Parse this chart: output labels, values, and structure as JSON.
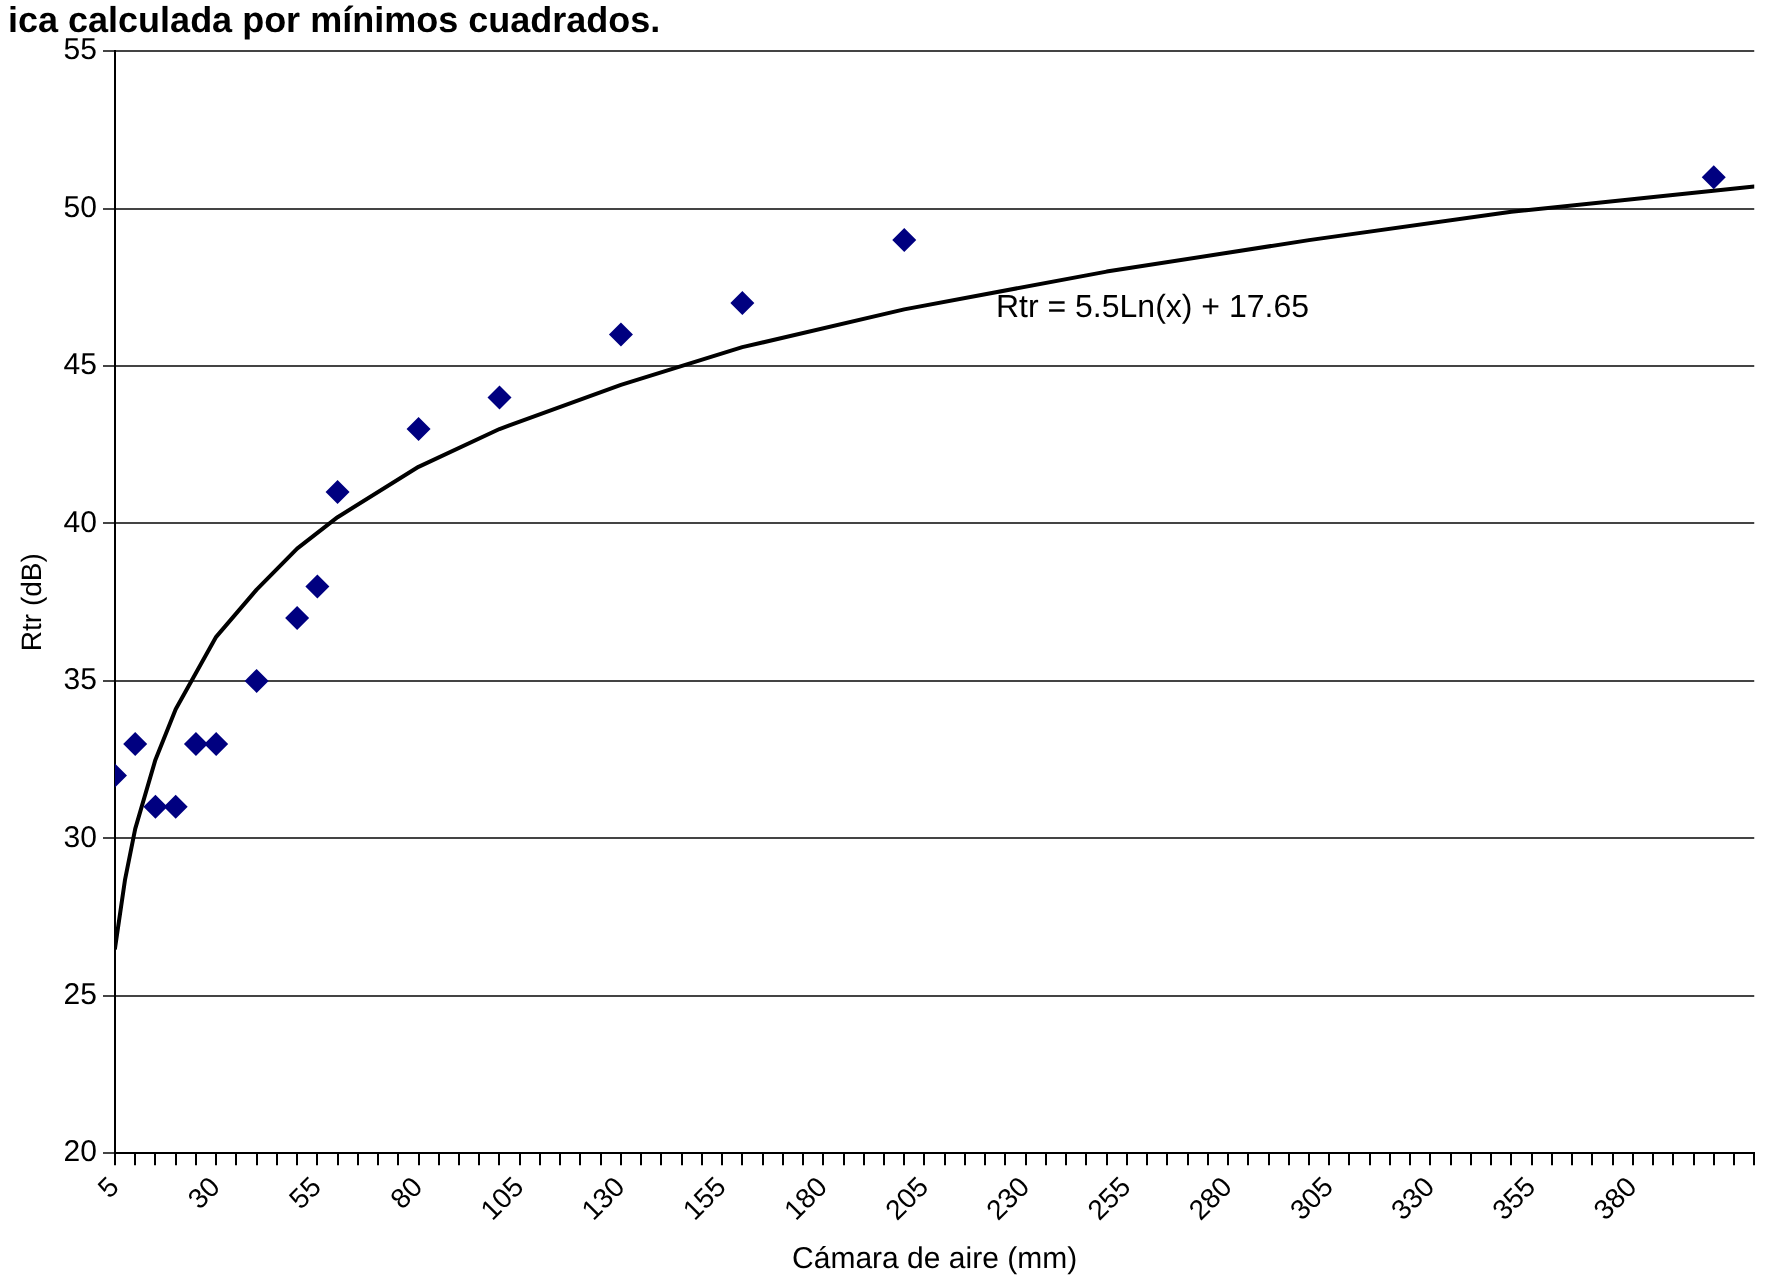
{
  "chart_data": {
    "type": "scatter",
    "title": "ica calculada por mínimos cuadrados.",
    "xlabel": "Cámara de aire (mm)",
    "ylabel": "Rtr (dB)",
    "series": [
      {
        "color": "#000080",
        "x": [
          5,
          10,
          15,
          20,
          25,
          30,
          40,
          50,
          55,
          60,
          80,
          100,
          130,
          160,
          200,
          400
        ],
        "values": [
          32,
          33,
          31,
          31,
          33,
          33,
          35,
          37,
          38,
          41,
          43,
          44,
          46,
          47,
          49,
          51
        ],
        "marker": "diamond"
      },
      {
        "type": "line",
        "name": "Rtr = 5.5Ln(x) + 17.65",
        "color": "#000000",
        "x": [
          5,
          7.5,
          10,
          15,
          20,
          30,
          40,
          50,
          60,
          80,
          100,
          130,
          160,
          200,
          250,
          300,
          350,
          410
        ],
        "values": [
          26.5,
          28.7,
          30.3,
          32.5,
          34.1,
          36.4,
          37.9,
          39.2,
          40.2,
          41.8,
          43.0,
          44.4,
          45.6,
          46.8,
          48.0,
          49.0,
          49.9,
          50.7
        ],
        "marker": "none",
        "line_style": "solid"
      }
    ],
    "xlim": [
      5,
      410
    ],
    "xticks": [
      5,
      {
        "value": 10,
        "label": null
      },
      {
        "value": 15,
        "label": null
      },
      {
        "value": 20,
        "label": null
      },
      {
        "value": 25,
        "label": null
      },
      30,
      {
        "value": 35,
        "label": null
      },
      {
        "value": 40,
        "label": null
      },
      {
        "value": 45,
        "label": null
      },
      {
        "value": 50,
        "label": null
      },
      55,
      {
        "value": 60,
        "label": null
      },
      {
        "value": 65,
        "label": null
      },
      {
        "value": 70,
        "label": null
      },
      {
        "value": 75,
        "label": null
      },
      80,
      {
        "value": 85,
        "label": null
      },
      {
        "value": 90,
        "label": null
      },
      {
        "value": 95,
        "label": null
      },
      {
        "value": 100,
        "label": null
      },
      105,
      {
        "value": 110,
        "label": null
      },
      {
        "value": 115,
        "label": null
      },
      {
        "value": 120,
        "label": null
      },
      {
        "value": 125,
        "label": null
      },
      130,
      {
        "value": 135,
        "label": null
      },
      {
        "value": 140,
        "label": null
      },
      {
        "value": 145,
        "label": null
      },
      {
        "value": 150,
        "label": null
      },
      155,
      {
        "value": 160,
        "label": null
      },
      {
        "value": 165,
        "label": null
      },
      {
        "value": 170,
        "label": null
      },
      {
        "value": 175,
        "label": null
      },
      180,
      {
        "value": 185,
        "label": null
      },
      {
        "value": 190,
        "label": null
      },
      {
        "value": 195,
        "label": null
      },
      {
        "value": 200,
        "label": null
      },
      205,
      {
        "value": 210,
        "label": null
      },
      {
        "value": 215,
        "label": null
      },
      {
        "value": 220,
        "label": null
      },
      {
        "value": 225,
        "label": null
      },
      230,
      {
        "value": 235,
        "label": null
      },
      {
        "value": 240,
        "label": null
      },
      {
        "value": 245,
        "label": null
      },
      {
        "value": 250,
        "label": null
      },
      255,
      {
        "value": 260,
        "label": null
      },
      {
        "value": 265,
        "label": null
      },
      {
        "value": 270,
        "label": null
      },
      {
        "value": 275,
        "label": null
      },
      280,
      {
        "value": 285,
        "label": null
      },
      {
        "value": 290,
        "label": null
      },
      {
        "value": 295,
        "label": null
      },
      {
        "value": 300,
        "label": null
      },
      305,
      {
        "value": 310,
        "label": null
      },
      {
        "value": 315,
        "label": null
      },
      {
        "value": 320,
        "label": null
      },
      {
        "value": 325,
        "label": null
      },
      330,
      {
        "value": 335,
        "label": null
      },
      {
        "value": 340,
        "label": null
      },
      {
        "value": 345,
        "label": null
      },
      {
        "value": 350,
        "label": null
      },
      355,
      {
        "value": 360,
        "label": null
      },
      {
        "value": 365,
        "label": null
      },
      {
        "value": 370,
        "label": null
      },
      {
        "value": 375,
        "label": null
      },
      380,
      {
        "value": 385,
        "label": null
      },
      {
        "value": 390,
        "label": null
      },
      {
        "value": 395,
        "label": null
      },
      {
        "value": 400,
        "label": null
      },
      {
        "value": 405,
        "label": null
      },
      {
        "value": 410,
        "label": null
      }
    ],
    "ylim": [
      20,
      55
    ],
    "yticks": [
      20,
      25,
      30,
      35,
      40,
      45,
      50,
      55
    ],
    "grid": "y",
    "legend": false
  }
}
